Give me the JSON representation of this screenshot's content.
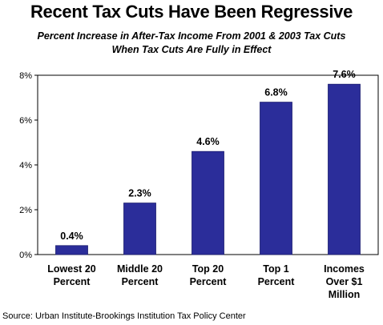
{
  "title": "Recent Tax Cuts Have Been Regressive",
  "subtitle_line1": "Percent Increase in After-Tax Income From 2001 & 2003 Tax Cuts",
  "subtitle_line2": "When Tax Cuts Are Fully in Effect",
  "source": "Source: Urban Institute-Brookings Institution Tax Policy Center",
  "chart_data": {
    "type": "bar",
    "title": "Recent Tax Cuts Have Been Regressive",
    "subtitle": "Percent Increase in After-Tax Income From 2001 & 2003 Tax Cuts When Tax Cuts Are Fully in Effect",
    "categories": [
      [
        "Lowest 20",
        "Percent"
      ],
      [
        "Middle 20",
        "Percent"
      ],
      [
        "Top 20",
        "Percent"
      ],
      [
        "Top 1",
        "Percent"
      ],
      [
        "Incomes",
        "Over $1",
        "Million"
      ]
    ],
    "values": [
      0.4,
      2.3,
      4.6,
      6.8,
      7.6
    ],
    "data_labels": [
      "0.4%",
      "2.3%",
      "4.6%",
      "6.8%",
      "7.6%"
    ],
    "xlabel": "",
    "ylabel": "",
    "ylim": [
      0,
      8
    ],
    "yticks": [
      0,
      2,
      4,
      6,
      8
    ],
    "ytick_labels": [
      "0%",
      "2%",
      "4%",
      "6%",
      "8%"
    ],
    "grid": false,
    "legend": "none",
    "bar_color": "#2b2d9a",
    "axis_color": "#000000"
  }
}
